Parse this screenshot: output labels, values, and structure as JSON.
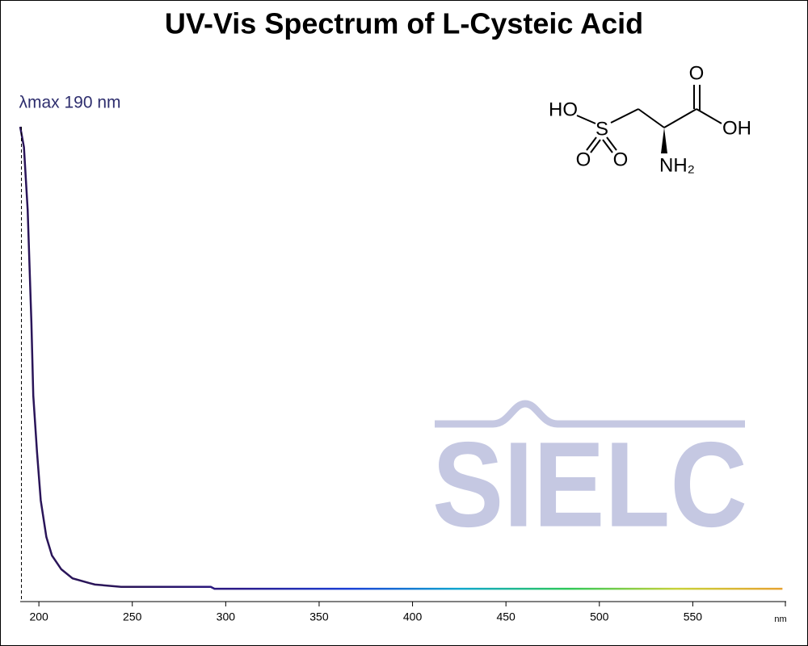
{
  "chart_data": {
    "type": "line",
    "title": "UV-Vis Spectrum of L-Cysteic Acid",
    "xlabel": "nm",
    "x": [
      190,
      192,
      194,
      196,
      197,
      199,
      201,
      204,
      207,
      212,
      218,
      227,
      230,
      244,
      292,
      294,
      598
    ],
    "series": [
      {
        "values": [
          1.0,
          0.957,
          0.825,
          0.587,
          0.434,
          0.315,
          0.213,
          0.136,
          0.097,
          0.068,
          0.049,
          0.039,
          0.036,
          0.031,
          0.031,
          0.027,
          0.027
        ],
        "colors": [
          "#2a1559",
          "#2a1559",
          "#2b1a8a",
          "#1a3fd6",
          "#10a6d0",
          "#2ec85a",
          "#c8d23a",
          "#e8a030"
        ]
      }
    ],
    "xlim": [
      190,
      600
    ],
    "xticks": [
      200,
      250,
      300,
      350,
      400,
      450,
      500,
      550
    ],
    "ylim": [
      0,
      1
    ],
    "annotations": [
      {
        "text": "λmax  190 nm",
        "x": 190
      }
    ],
    "watermark": "SIELC",
    "molecule": {
      "labels": [
        "HO",
        "S",
        "O",
        "O",
        "O",
        "OH",
        "NH₂"
      ]
    }
  }
}
